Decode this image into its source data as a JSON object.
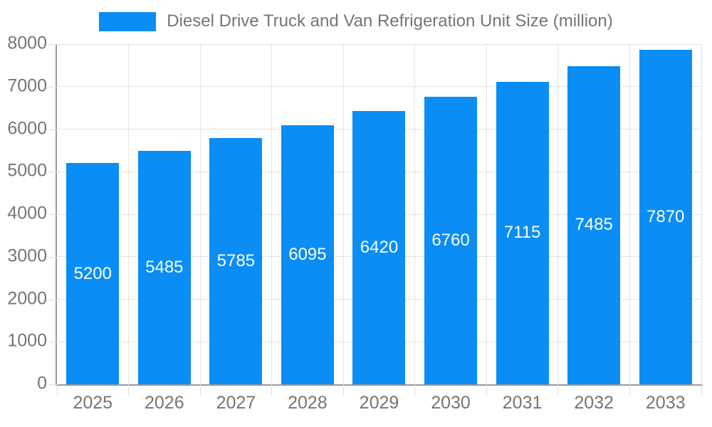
{
  "chart_data": {
    "type": "bar",
    "title": "Diesel Drive Truck and Van Refrigeration Unit Size (million)",
    "series_name": "Diesel Drive Truck and Van Refrigeration Unit Size (million)",
    "categories": [
      "2025",
      "2026",
      "2027",
      "2028",
      "2029",
      "2030",
      "2031",
      "2032",
      "2033"
    ],
    "values": [
      5200,
      5485,
      5785,
      6095,
      6420,
      6760,
      7115,
      7485,
      7870
    ],
    "bar_value_labels": [
      "5200",
      "5485",
      "5785",
      "6095",
      "6420",
      "6760",
      "7115",
      "7485",
      "7870"
    ],
    "y_ticks": [
      0,
      1000,
      2000,
      3000,
      4000,
      5000,
      6000,
      7000,
      8000
    ],
    "ylim": [
      0,
      8000
    ],
    "xlabel": "",
    "ylabel": "",
    "grid": true,
    "legend_position": "top-center",
    "bar_labels_visible": true,
    "colors": {
      "bar": "#0a8df5",
      "bar_label": "#ffffff",
      "grid": "#e3e3e3",
      "tick": "#dddddd",
      "axis": "#999999",
      "tick_text": "#757575",
      "legend_text": "#757575",
      "background": "#ffffff"
    }
  }
}
